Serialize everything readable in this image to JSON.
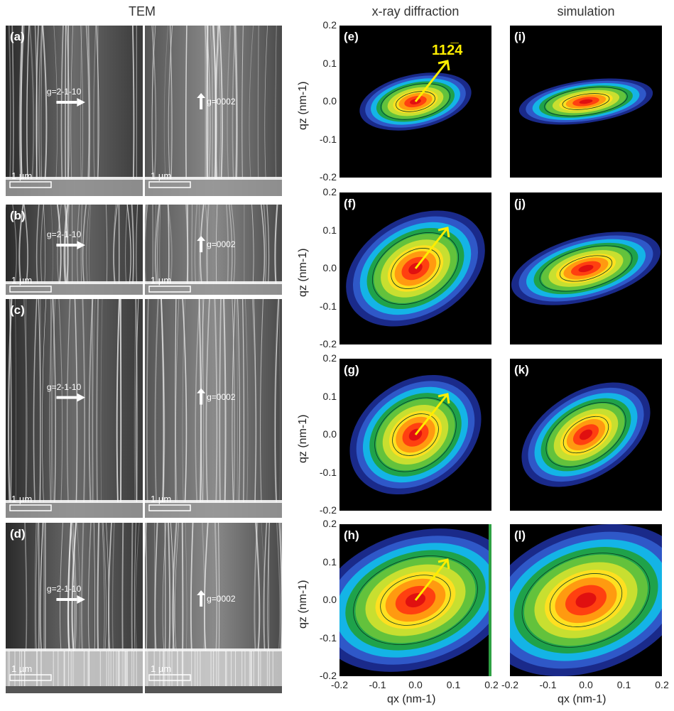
{
  "headers": {
    "tem": "TEM",
    "xrd": "x-ray diffraction",
    "sim": "simulation"
  },
  "tem_rows": [
    {
      "label": "(a)",
      "g_left": "g=2-1-10",
      "g_right": "g=0002",
      "scale": "1 µm"
    },
    {
      "label": "(b)",
      "g_left": "g=2-1-10",
      "g_right": "g=0002",
      "scale": "1 µm"
    },
    {
      "label": "(c)",
      "g_left": "g=2-1-10",
      "g_right": "g=0002",
      "scale": "1 µm"
    },
    {
      "label": "(d)",
      "g_left": "g=2-1-10",
      "g_right": "g=0002",
      "scale": "1 µm"
    }
  ],
  "xrd_labels": [
    "(e)",
    "(f)",
    "(g)",
    "(h)"
  ],
  "sim_labels": [
    "(i)",
    "(j)",
    "(k)",
    "(l)"
  ],
  "reflection": "112̅4",
  "axes": {
    "ylabel": "qz (nm-1)",
    "xlabel": "qx (nm-1)",
    "yticks": [
      "0.2",
      "0.1",
      "0.0",
      "-0.1",
      "-0.2"
    ],
    "xticks": [
      "-0.2",
      "-0.1",
      "0.0",
      "0.1",
      "0.2"
    ]
  },
  "colors": {
    "arrow": "#ffee00",
    "panel_bg": "#000000"
  },
  "chart_data": [
    {
      "type": "heatmap",
      "panel": "(e)",
      "xlim": [
        -0.2,
        0.2
      ],
      "ylim": [
        -0.2,
        0.2
      ]
    },
    {
      "type": "heatmap",
      "panel": "(f)",
      "xlim": [
        -0.2,
        0.2
      ],
      "ylim": [
        -0.2,
        0.2
      ]
    },
    {
      "type": "heatmap",
      "panel": "(g)",
      "xlim": [
        -0.2,
        0.2
      ],
      "ylim": [
        -0.2,
        0.2
      ]
    },
    {
      "type": "heatmap",
      "panel": "(h)",
      "xlim": [
        -0.2,
        0.2
      ],
      "ylim": [
        -0.2,
        0.2
      ]
    },
    {
      "type": "heatmap",
      "panel": "(i)",
      "xlim": [
        -0.2,
        0.2
      ],
      "ylim": [
        -0.2,
        0.2
      ]
    },
    {
      "type": "heatmap",
      "panel": "(j)",
      "xlim": [
        -0.2,
        0.2
      ],
      "ylim": [
        -0.2,
        0.2
      ]
    },
    {
      "type": "heatmap",
      "panel": "(k)",
      "xlim": [
        -0.2,
        0.2
      ],
      "ylim": [
        -0.2,
        0.2
      ]
    },
    {
      "type": "heatmap",
      "panel": "(l)",
      "xlim": [
        -0.2,
        0.2
      ],
      "ylim": [
        -0.2,
        0.2
      ]
    }
  ]
}
